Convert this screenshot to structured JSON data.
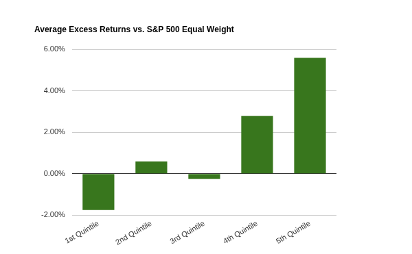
{
  "chart_data": {
    "type": "bar",
    "title": "Average Excess Returns vs. S&P 500 Equal Weight",
    "categories": [
      "1st Quintile",
      "2nd Quintile",
      "3rd Quintile",
      "4th Quintile",
      "5th Quintile"
    ],
    "values": [
      -1.75,
      0.6,
      -0.25,
      2.8,
      5.6
    ],
    "color": "#38761d",
    "ylim": [
      -2,
      6
    ],
    "yticks": [
      {
        "value": -2,
        "label": "-2.00%"
      },
      {
        "value": 0,
        "label": "0.00%"
      },
      {
        "value": 2,
        "label": "2.00%"
      },
      {
        "value": 4,
        "label": "4.00%"
      },
      {
        "value": 6,
        "label": "6.00%"
      }
    ],
    "grid": true
  }
}
